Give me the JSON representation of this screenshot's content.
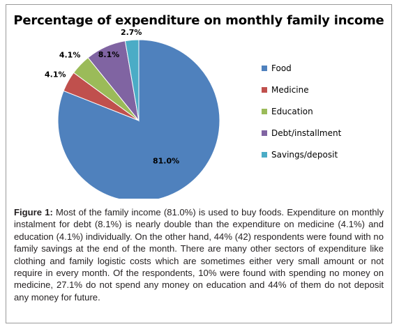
{
  "chart_data": {
    "type": "pie",
    "title": "Percentage of expenditure on monthly family income",
    "categories": [
      "Food",
      "Medicine",
      "Education",
      "Debt/installment",
      "Savings/deposit"
    ],
    "values": [
      81.0,
      4.1,
      4.1,
      8.1,
      2.7
    ],
    "data_labels": [
      "81.0%",
      "4.1%",
      "4.1%",
      "8.1%",
      "2.7%"
    ],
    "colors": [
      "#4F81BD",
      "#C0504D",
      "#9BBB59",
      "#8064A2",
      "#4BACC6"
    ],
    "legend_position": "right",
    "start": "12 o'clock, clockwise"
  },
  "caption": {
    "label": "Figure 1:",
    "text": " Most of the family income (81.0%) is used to buy foods. Expenditure on monthly instalment for debt (8.1%) is nearly double than the expenditure on medicine (4.1%) and education (4.1%) individually. On the other hand, 44% (42) respondents were found with no family savings at the end of the month. There are many other sectors of expenditure like clothing and family logistic costs which are sometimes either very small amount or not require in every month. Of the respondents, 10% were found with spending no money on medicine, 27.1% do not spend any money on education and 44% of them do not deposit any money for future."
  }
}
